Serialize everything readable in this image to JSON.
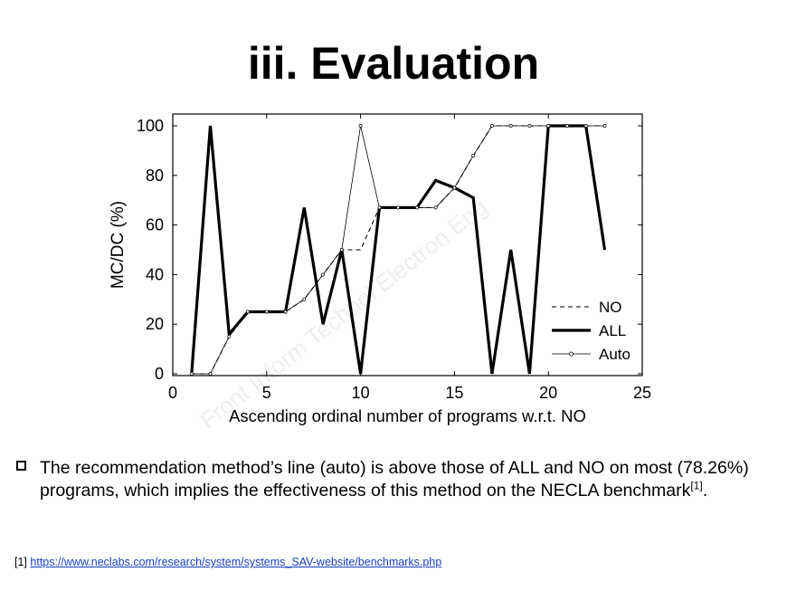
{
  "slide": {
    "title": "iii. Evaluation",
    "bullet_text": "The recommendation method’s line (auto) is above those of ALL and NO on most (78.26%) programs, which implies the effectiveness of this method on the NECLA benchmark",
    "bullet_ref": "[1]",
    "bullet_end": ".",
    "footnote_marker": "[1]",
    "footnote_link": "https://www.neclabs.com/research/system/systems_SAV-website/benchmarks.php"
  },
  "chart_data": {
    "type": "line",
    "xlabel": "Ascending ordinal number of programs w.r.t. NO",
    "ylabel": "MC/DC (%)",
    "xlim": [
      0,
      25
    ],
    "ylim": [
      0,
      100
    ],
    "xticks": [
      0,
      5,
      10,
      15,
      20,
      25
    ],
    "yticks": [
      0,
      20,
      40,
      60,
      80,
      100
    ],
    "grid": false,
    "legend_position": "bottom-right",
    "x": [
      1,
      2,
      3,
      4,
      5,
      6,
      7,
      8,
      9,
      10,
      11,
      12,
      13,
      14,
      15,
      16,
      17,
      18,
      19,
      20,
      21,
      22,
      23
    ],
    "series": [
      {
        "name": "NO",
        "style": "dashed",
        "values": [
          0,
          0,
          15,
          25,
          25,
          25,
          30,
          40,
          50,
          50,
          67,
          67,
          67,
          67,
          75,
          88,
          100,
          100,
          100,
          100,
          100,
          100,
          100
        ]
      },
      {
        "name": "ALL",
        "style": "thick",
        "values": [
          0,
          100,
          16,
          25,
          25,
          25,
          67,
          20,
          50,
          0,
          67,
          67,
          67,
          78,
          75,
          71,
          0,
          50,
          0,
          100,
          100,
          100,
          50
        ]
      },
      {
        "name": "Auto",
        "style": "thin-marker",
        "values": [
          0,
          0,
          15,
          25,
          25,
          25,
          30,
          40,
          50,
          100,
          67,
          67,
          67,
          67,
          75,
          88,
          100,
          100,
          100,
          100,
          100,
          100,
          100
        ]
      }
    ],
    "watermark": "Front Inform Technol Electron Eng"
  }
}
